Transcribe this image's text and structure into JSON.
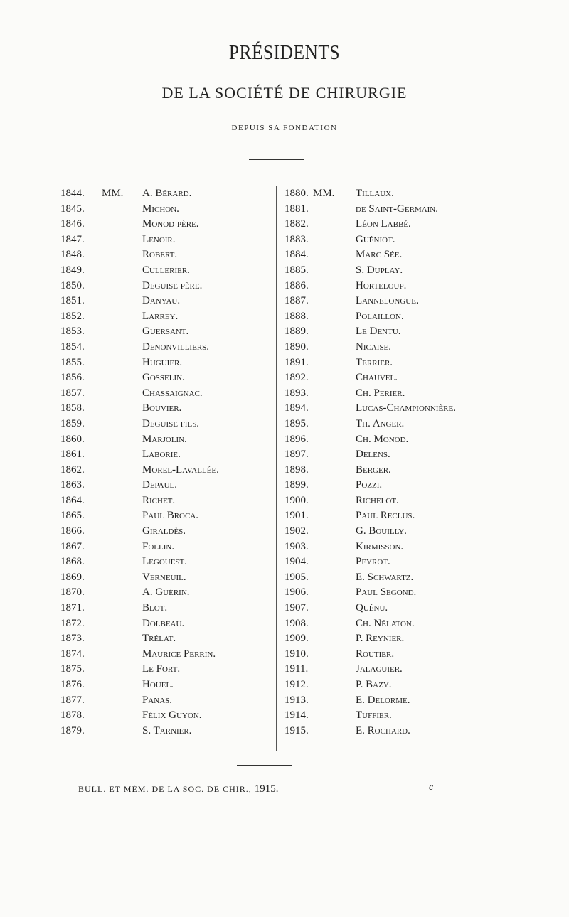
{
  "title": "PRÉSIDENTS",
  "subtitle": "DE LA SOCIÉTÉ DE CHIRURGIE",
  "since": "DEPUIS SA FONDATION",
  "honorific": "MM.",
  "left_column": [
    {
      "year": "1844.",
      "name": "A. Bérard."
    },
    {
      "year": "1845.",
      "name": "Michon."
    },
    {
      "year": "1846.",
      "name": "Monod père."
    },
    {
      "year": "1847.",
      "name": "Lenoir."
    },
    {
      "year": "1848.",
      "name": "Robert."
    },
    {
      "year": "1849.",
      "name": "Cullerier."
    },
    {
      "year": "1850.",
      "name": "Deguise père."
    },
    {
      "year": "1851.",
      "name": "Danyau."
    },
    {
      "year": "1852.",
      "name": "Larrey."
    },
    {
      "year": "1853.",
      "name": "Guersant."
    },
    {
      "year": "1854.",
      "name": "Denonvilliers."
    },
    {
      "year": "1855.",
      "name": "Huguier."
    },
    {
      "year": "1856.",
      "name": "Gosselin."
    },
    {
      "year": "1857.",
      "name": "Chassaignac."
    },
    {
      "year": "1858.",
      "name": "Bouvier."
    },
    {
      "year": "1859.",
      "name": "Deguise fils."
    },
    {
      "year": "1860.",
      "name": "Marjolin."
    },
    {
      "year": "1861.",
      "name": "Laborie."
    },
    {
      "year": "1862.",
      "name": "Morel-Lavallée."
    },
    {
      "year": "1863.",
      "name": "Depaul."
    },
    {
      "year": "1864.",
      "name": "Richet."
    },
    {
      "year": "1865.",
      "name": "Paul Broca."
    },
    {
      "year": "1866.",
      "name": "Giraldès."
    },
    {
      "year": "1867.",
      "name": "Follin."
    },
    {
      "year": "1868.",
      "name": "Legouest."
    },
    {
      "year": "1869.",
      "name": "Verneuil."
    },
    {
      "year": "1870.",
      "name": "A. Guérin."
    },
    {
      "year": "1871.",
      "name": "Blot."
    },
    {
      "year": "1872.",
      "name": "Dolbeau."
    },
    {
      "year": "1873.",
      "name": "Trélat."
    },
    {
      "year": "1874.",
      "name": "Maurice Perrin."
    },
    {
      "year": "1875.",
      "name": "Le Fort."
    },
    {
      "year": "1876.",
      "name": "Houel."
    },
    {
      "year": "1877.",
      "name": "Panas."
    },
    {
      "year": "1878.",
      "name": "Félix Guyon."
    },
    {
      "year": "1879.",
      "name": "S. Tarnier."
    }
  ],
  "right_column": [
    {
      "year": "1880.",
      "name": "Tillaux."
    },
    {
      "year": "1881.",
      "name": "de Saint-Germain."
    },
    {
      "year": "1882.",
      "name": "Léon Labbé."
    },
    {
      "year": "1883.",
      "name": "Guéniot."
    },
    {
      "year": "1884.",
      "name": "Marc Sée."
    },
    {
      "year": "1885.",
      "name": "S. Duplay."
    },
    {
      "year": "1886.",
      "name": "Horteloup."
    },
    {
      "year": "1887.",
      "name": "Lannelongue."
    },
    {
      "year": "1888.",
      "name": "Polaillon."
    },
    {
      "year": "1889.",
      "name": "Le Dentu."
    },
    {
      "year": "1890.",
      "name": "Nicaise."
    },
    {
      "year": "1891.",
      "name": "Terrier."
    },
    {
      "year": "1892.",
      "name": "Chauvel."
    },
    {
      "year": "1893.",
      "name": "Ch. Perier."
    },
    {
      "year": "1894.",
      "name": "Lucas-Championnière."
    },
    {
      "year": "1895.",
      "name": "Th. Anger."
    },
    {
      "year": "1896.",
      "name": "Ch. Monod."
    },
    {
      "year": "1897.",
      "name": "Delens."
    },
    {
      "year": "1898.",
      "name": "Berger."
    },
    {
      "year": "1899.",
      "name": "Pozzi."
    },
    {
      "year": "1900.",
      "name": "Richelot."
    },
    {
      "year": "1901.",
      "name": "Paul Reclus."
    },
    {
      "year": "1902.",
      "name": "G. Bouilly."
    },
    {
      "year": "1903.",
      "name": "Kirmisson."
    },
    {
      "year": "1904.",
      "name": "Peyrot."
    },
    {
      "year": "1905.",
      "name": "E. Schwartz."
    },
    {
      "year": "1906.",
      "name": "Paul Segond."
    },
    {
      "year": "1907.",
      "name": "Quénu."
    },
    {
      "year": "1908.",
      "name": "Ch. Nélaton."
    },
    {
      "year": "1909.",
      "name": "P. Reynier."
    },
    {
      "year": "1910.",
      "name": "Routier."
    },
    {
      "year": "1911.",
      "name": "Jalaguier."
    },
    {
      "year": "1912.",
      "name": "P. Bazy."
    },
    {
      "year": "1913.",
      "name": "E. Delorme."
    },
    {
      "year": "1914.",
      "name": "Tuffier."
    },
    {
      "year": "1915.",
      "name": "E. Rochard."
    }
  ],
  "footer": {
    "citation": "BULL. ET MÉM. DE LA SOC. DE CHIR.,",
    "year": "1915.",
    "signature": "c"
  }
}
